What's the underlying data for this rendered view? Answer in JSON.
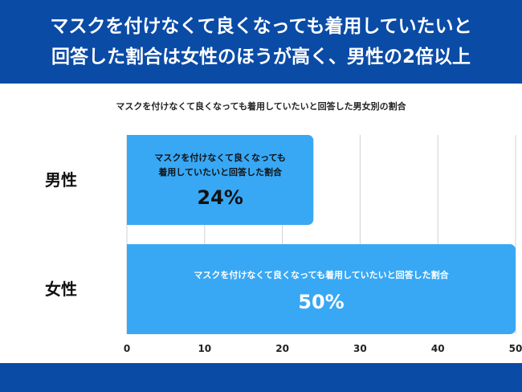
{
  "header": {
    "title_line1": "マスクを付けなくて良くなっても着用していたいと",
    "title_line2": "回答した割合は女性のほうが高く、男性の2倍以上"
  },
  "colors": {
    "header_bg": "#0a4ba6",
    "bar_fill": "#38a8f5",
    "grid": "#d0d0d0"
  },
  "chart_data": {
    "type": "bar",
    "orientation": "horizontal",
    "title": "マスクを付けなくて良くなっても着用していたいと回答した男女別の割合",
    "categories": [
      "男性",
      "女性"
    ],
    "values": [
      24,
      50
    ],
    "value_labels": [
      "24%",
      "50%"
    ],
    "bar_annotations": [
      [
        "マスクを付けなくて良くなっても",
        "着用していたいと回答した割合"
      ],
      [
        "マスクを付けなくて良くなっても着用していたいと回答した割合"
      ]
    ],
    "xlim": [
      0,
      50
    ],
    "xticks": [
      "0",
      "10",
      "20",
      "30",
      "40",
      "50"
    ],
    "xlabel": "",
    "ylabel": "",
    "grid": true
  }
}
